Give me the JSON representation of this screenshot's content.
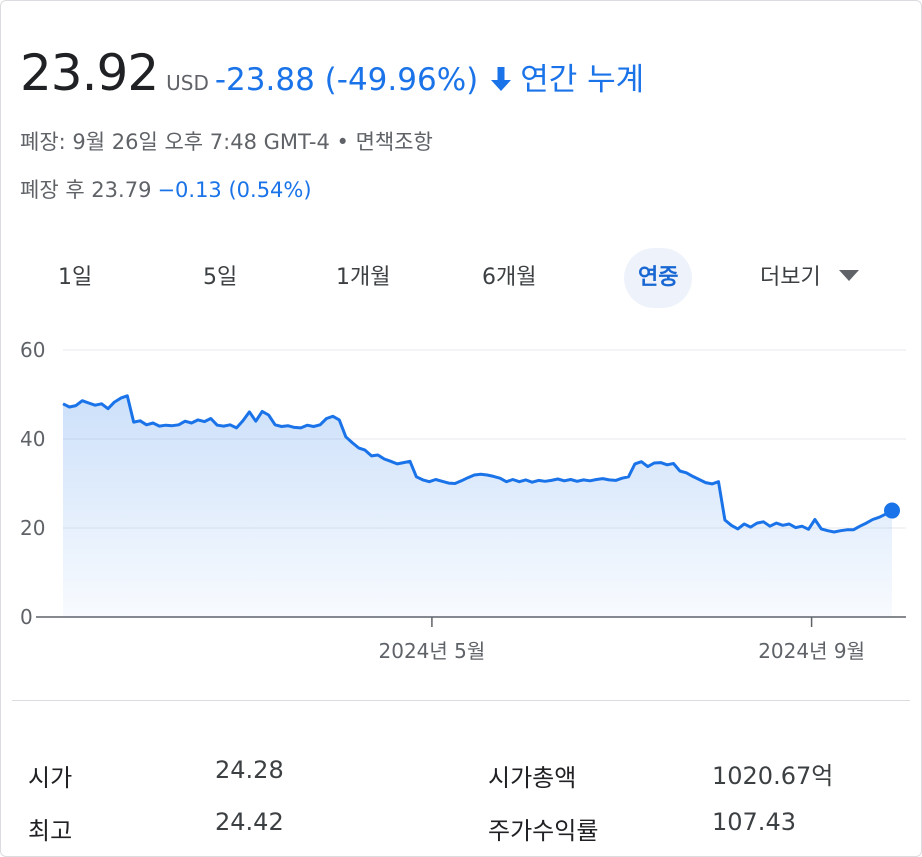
{
  "quote": {
    "price": "23.92",
    "currency": "USD",
    "change": "-23.88 (-49.96%)",
    "period_label": "연간 누계",
    "close_info": "폐장: 9월 26일 오후 7:48 GMT-4 • 면책조항",
    "after_hours_label": "폐장 후 23.79",
    "after_hours_change": "−0.13 (0.54%)",
    "accent_color": "#1a73e8"
  },
  "tabs": [
    {
      "label": "1일",
      "active": false
    },
    {
      "label": "5일",
      "active": false
    },
    {
      "label": "1개월",
      "active": false
    },
    {
      "label": "6개월",
      "active": false
    },
    {
      "label": "연중",
      "active": true
    },
    {
      "label": "더보기",
      "active": false
    }
  ],
  "chart_data": {
    "type": "area",
    "title": "",
    "xlabel": "",
    "ylabel": "",
    "ylim": [
      0,
      60
    ],
    "yticks": [
      0,
      20,
      40,
      60
    ],
    "xticks": [
      {
        "label": "2024년 5월",
        "x": 0.445
      },
      {
        "label": "2024년 9월",
        "x": 0.903
      }
    ],
    "grid": true,
    "series": [
      {
        "name": "",
        "color": "#1a73e8",
        "values": [
          47.9,
          47.2,
          47.5,
          48.6,
          48.1,
          47.6,
          47.9,
          46.8,
          48.3,
          49.2,
          49.7,
          43.8,
          44.1,
          43.2,
          43.6,
          42.9,
          43.1,
          43.0,
          43.2,
          44.0,
          43.6,
          44.3,
          43.9,
          44.6,
          43.1,
          42.9,
          43.2,
          42.5,
          44.1,
          46.1,
          44.0,
          46.2,
          45.4,
          43.2,
          42.8,
          43.0,
          42.6,
          42.5,
          43.1,
          42.8,
          43.2,
          44.6,
          45.1,
          44.3,
          40.5,
          39.2,
          38.0,
          37.5,
          36.2,
          36.4,
          35.5,
          35.0,
          34.4,
          34.7,
          35.0,
          31.5,
          30.8,
          30.4,
          30.9,
          30.5,
          30.1,
          30.0,
          30.6,
          31.3,
          31.9,
          32.1,
          31.9,
          31.6,
          31.2,
          30.4,
          30.9,
          30.4,
          30.8,
          30.3,
          30.7,
          30.5,
          30.7,
          31.0,
          30.6,
          30.9,
          30.5,
          30.8,
          30.6,
          30.9,
          31.1,
          30.8,
          30.7,
          31.2,
          31.5,
          34.4,
          34.9,
          33.8,
          34.6,
          34.7,
          34.2,
          34.5,
          32.8,
          32.4,
          31.6,
          30.9,
          30.2,
          29.9,
          30.4,
          21.8,
          20.6,
          19.8,
          20.9,
          20.2,
          21.1,
          21.4,
          20.4,
          21.1,
          20.6,
          20.9,
          20.1,
          20.4,
          19.7,
          21.9,
          19.8,
          19.4,
          19.1,
          19.4,
          19.6,
          19.6,
          20.4,
          21.1,
          21.9,
          22.4,
          23.1,
          23.92
        ]
      }
    ],
    "last_point_marker": true
  },
  "stats": [
    {
      "label": "시가",
      "value": "24.28"
    },
    {
      "label": "최고",
      "value": "24.42"
    },
    {
      "label": "시가총액",
      "value": "1020.67억"
    },
    {
      "label": "주가수익률",
      "value": "107.43"
    }
  ]
}
